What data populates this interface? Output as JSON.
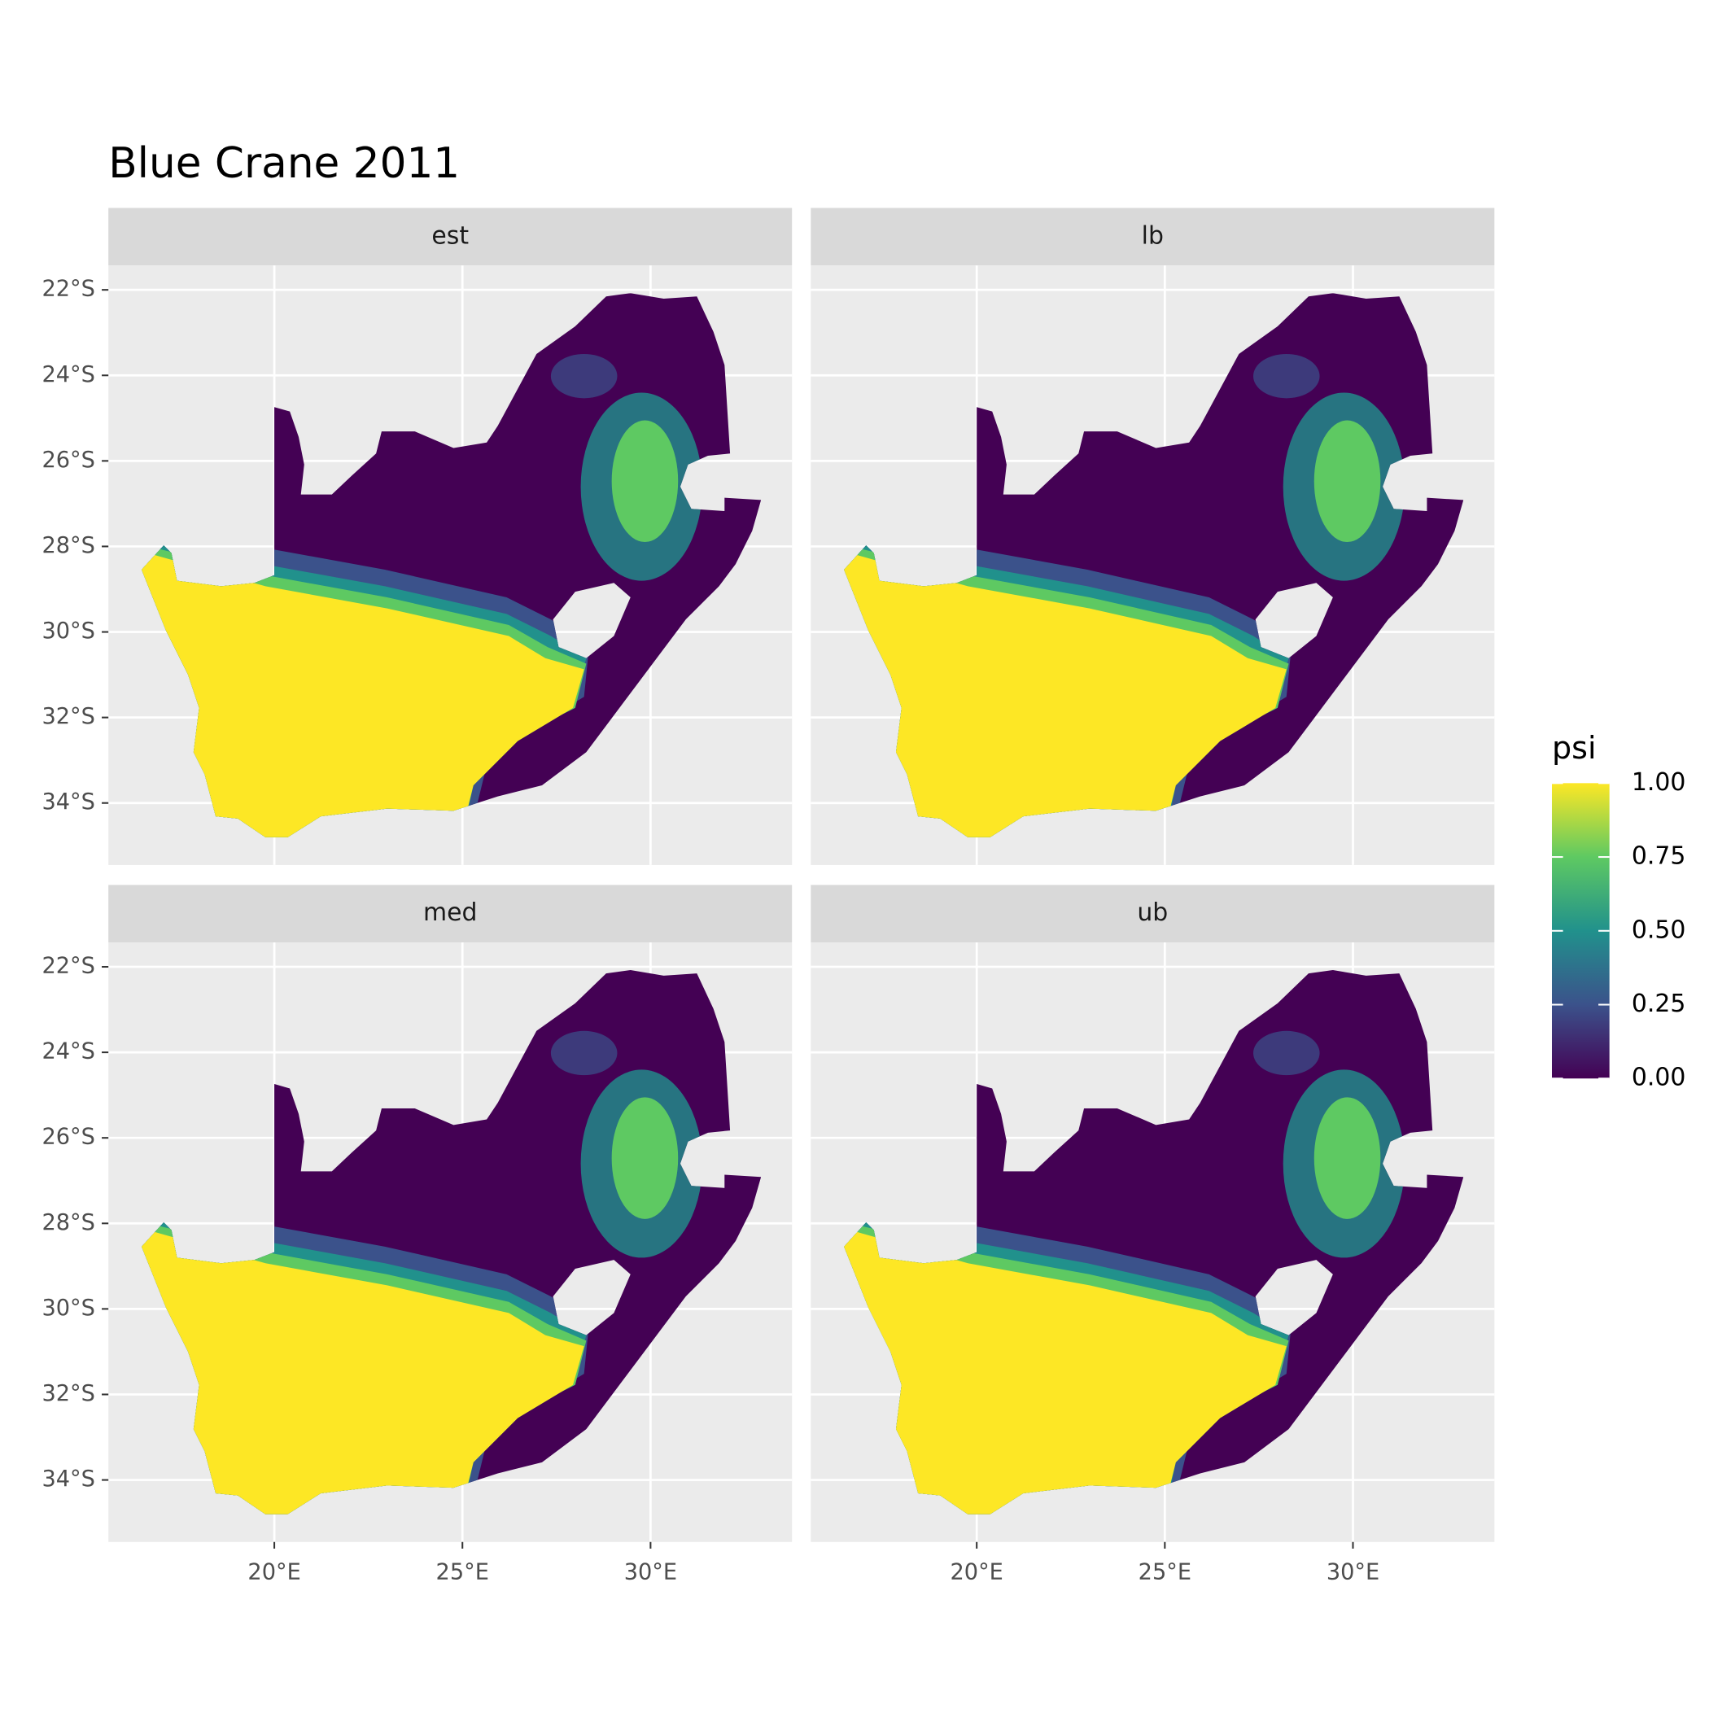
{
  "chart_data": {
    "type": "raster-map",
    "title": "Blue Crane 2011",
    "facets": [
      "est",
      "lb",
      "med",
      "ub"
    ],
    "xlim": [
      15.59,
      33.76
    ],
    "ylim": [
      -35.45,
      -21.43
    ],
    "xticks": [
      {
        "value": 20,
        "label": "20°E"
      },
      {
        "value": 25,
        "label": "25°E"
      },
      {
        "value": 30,
        "label": "30°E"
      }
    ],
    "yticks": [
      {
        "value": -22,
        "label": "22°S"
      },
      {
        "value": -24,
        "label": "24°S"
      },
      {
        "value": -26,
        "label": "26°S"
      },
      {
        "value": -28,
        "label": "28°S"
      },
      {
        "value": -30,
        "label": "30°S"
      },
      {
        "value": -32,
        "label": "32°S"
      },
      {
        "value": -34,
        "label": "34°S"
      }
    ],
    "grid": true,
    "legend": {
      "title": "psi",
      "position": "right",
      "limits": [
        0,
        1
      ],
      "ticks": [
        {
          "value": 0,
          "label": "0.00"
        },
        {
          "value": 0.25,
          "label": "0.25"
        },
        {
          "value": 0.5,
          "label": "0.50"
        },
        {
          "value": 0.75,
          "label": "0.75"
        },
        {
          "value": 1,
          "label": "1.00"
        }
      ],
      "colors": [
        "#440154",
        "#3b528b",
        "#21918c",
        "#5ec962",
        "#fde725"
      ]
    }
  }
}
